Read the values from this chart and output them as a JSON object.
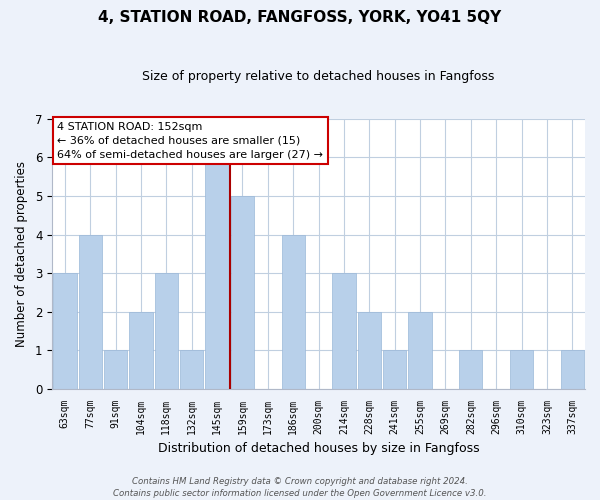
{
  "title": "4, STATION ROAD, FANGFOSS, YORK, YO41 5QY",
  "subtitle": "Size of property relative to detached houses in Fangfoss",
  "xlabel": "Distribution of detached houses by size in Fangfoss",
  "ylabel": "Number of detached properties",
  "bar_labels": [
    "63sqm",
    "77sqm",
    "91sqm",
    "104sqm",
    "118sqm",
    "132sqm",
    "145sqm",
    "159sqm",
    "173sqm",
    "186sqm",
    "200sqm",
    "214sqm",
    "228sqm",
    "241sqm",
    "255sqm",
    "269sqm",
    "282sqm",
    "296sqm",
    "310sqm",
    "323sqm",
    "337sqm"
  ],
  "bar_values": [
    3,
    4,
    1,
    2,
    3,
    1,
    6,
    5,
    0,
    4,
    0,
    3,
    2,
    1,
    2,
    0,
    1,
    0,
    1,
    0,
    1
  ],
  "bar_color": "#b8d0ea",
  "marker_index": 6,
  "marker_color": "#aa0000",
  "ylim": [
    0,
    7
  ],
  "yticks": [
    0,
    1,
    2,
    3,
    4,
    5,
    6,
    7
  ],
  "annotation_line1": "4 STATION ROAD: 152sqm",
  "annotation_line2": "← 36% of detached houses are smaller (15)",
  "annotation_line3": "64% of semi-detached houses are larger (27) →",
  "footer_line1": "Contains HM Land Registry data © Crown copyright and database right 2024.",
  "footer_line2": "Contains public sector information licensed under the Open Government Licence v3.0.",
  "bg_color": "#edf2fa",
  "plot_bg_color": "#ffffff",
  "grid_color": "#c0cfe0"
}
